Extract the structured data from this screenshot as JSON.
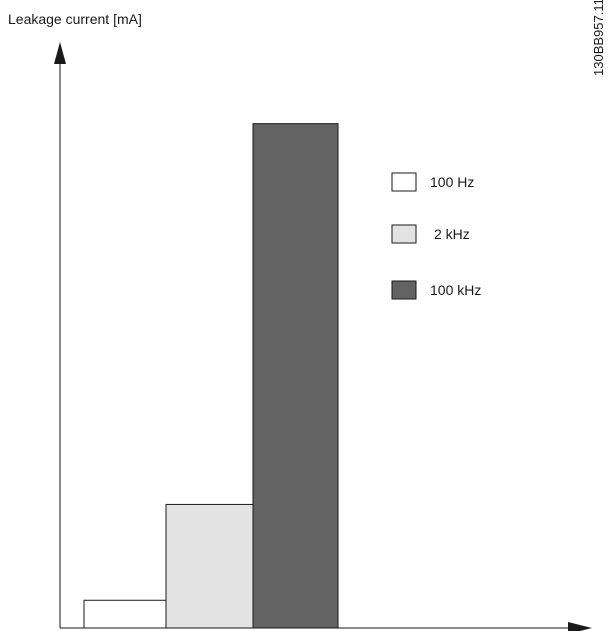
{
  "chart_data": {
    "type": "bar",
    "title": "",
    "xlabel": "",
    "ylabel": "Leakage current [mA]",
    "categories": [
      "100 Hz",
      "2 kHz",
      "100 kHz"
    ],
    "values": [
      5.5,
      24.5,
      100
    ],
    "ylim": [
      0,
      115
    ],
    "grid": false,
    "y_ticks_shown": false,
    "legend": {
      "position": "right",
      "entries": [
        {
          "label": "100 Hz",
          "color": "#ffffff"
        },
        {
          "label": "2 kHz",
          "color": "#e3e3e4"
        },
        {
          "label": "100 kHz",
          "color": "#636363"
        }
      ]
    }
  },
  "document_id": "130BB957.11"
}
